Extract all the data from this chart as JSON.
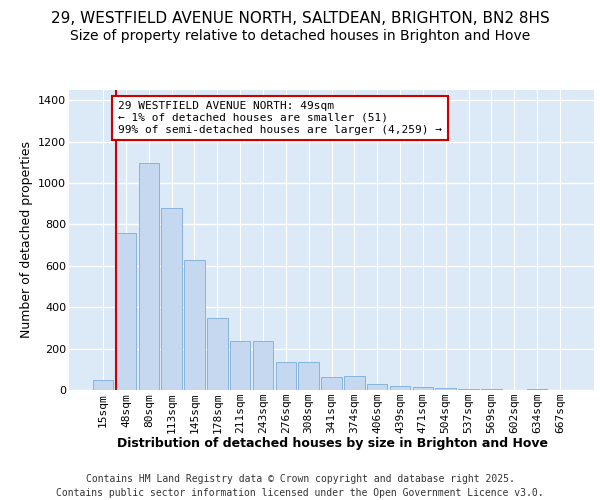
{
  "title_line1": "29, WESTFIELD AVENUE NORTH, SALTDEAN, BRIGHTON, BN2 8HS",
  "title_line2": "Size of property relative to detached houses in Brighton and Hove",
  "xlabel": "Distribution of detached houses by size in Brighton and Hove",
  "ylabel": "Number of detached properties",
  "categories": [
    "15sqm",
    "48sqm",
    "80sqm",
    "113sqm",
    "145sqm",
    "178sqm",
    "211sqm",
    "243sqm",
    "276sqm",
    "308sqm",
    "341sqm",
    "374sqm",
    "406sqm",
    "439sqm",
    "471sqm",
    "504sqm",
    "537sqm",
    "569sqm",
    "602sqm",
    "634sqm",
    "667sqm"
  ],
  "values": [
    50,
    760,
    1095,
    880,
    630,
    350,
    235,
    235,
    135,
    135,
    65,
    70,
    30,
    20,
    15,
    8,
    5,
    3,
    1,
    5,
    2
  ],
  "bar_color": "#c5d8ef",
  "bar_edge_color": "#7aaed6",
  "annotation_text": "29 WESTFIELD AVENUE NORTH: 49sqm\n← 1% of detached houses are smaller (51)\n99% of semi-detached houses are larger (4,259) →",
  "vline_color": "#cc0000",
  "ylim": [
    0,
    1450
  ],
  "yticks": [
    0,
    200,
    400,
    600,
    800,
    1000,
    1200,
    1400
  ],
  "bg_color": "#dce9f7",
  "fig_bg_color": "#ffffff",
  "grid_color": "#ffffff",
  "footer": "Contains HM Land Registry data © Crown copyright and database right 2025.\nContains public sector information licensed under the Open Government Licence v3.0.",
  "title_fontsize": 11,
  "subtitle_fontsize": 10,
  "axis_label_fontsize": 9,
  "tick_fontsize": 8,
  "annotation_fontsize": 8,
  "footer_fontsize": 7
}
